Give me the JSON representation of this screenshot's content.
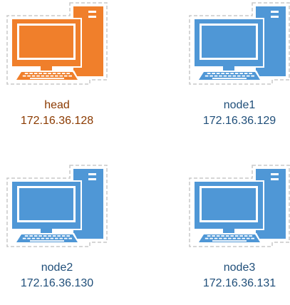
{
  "nodes": [
    {
      "name": "head",
      "ip": "172.16.36.128",
      "role": "head-node",
      "color": "#f07f2b",
      "text_color": "#8b3a00"
    },
    {
      "name": "node1",
      "ip": "172.16.36.129",
      "role": "compute-node",
      "color": "#4f97d6",
      "text_color": "#1f4e79"
    },
    {
      "name": "node2",
      "ip": "172.16.36.130",
      "role": "compute-node",
      "color": "#4f97d6",
      "text_color": "#1f4e79"
    },
    {
      "name": "node3",
      "ip": "172.16.36.131",
      "role": "compute-node",
      "color": "#4f97d6",
      "text_color": "#1f4e79"
    }
  ],
  "icons": {
    "computer": "desktop-computer-icon"
  }
}
